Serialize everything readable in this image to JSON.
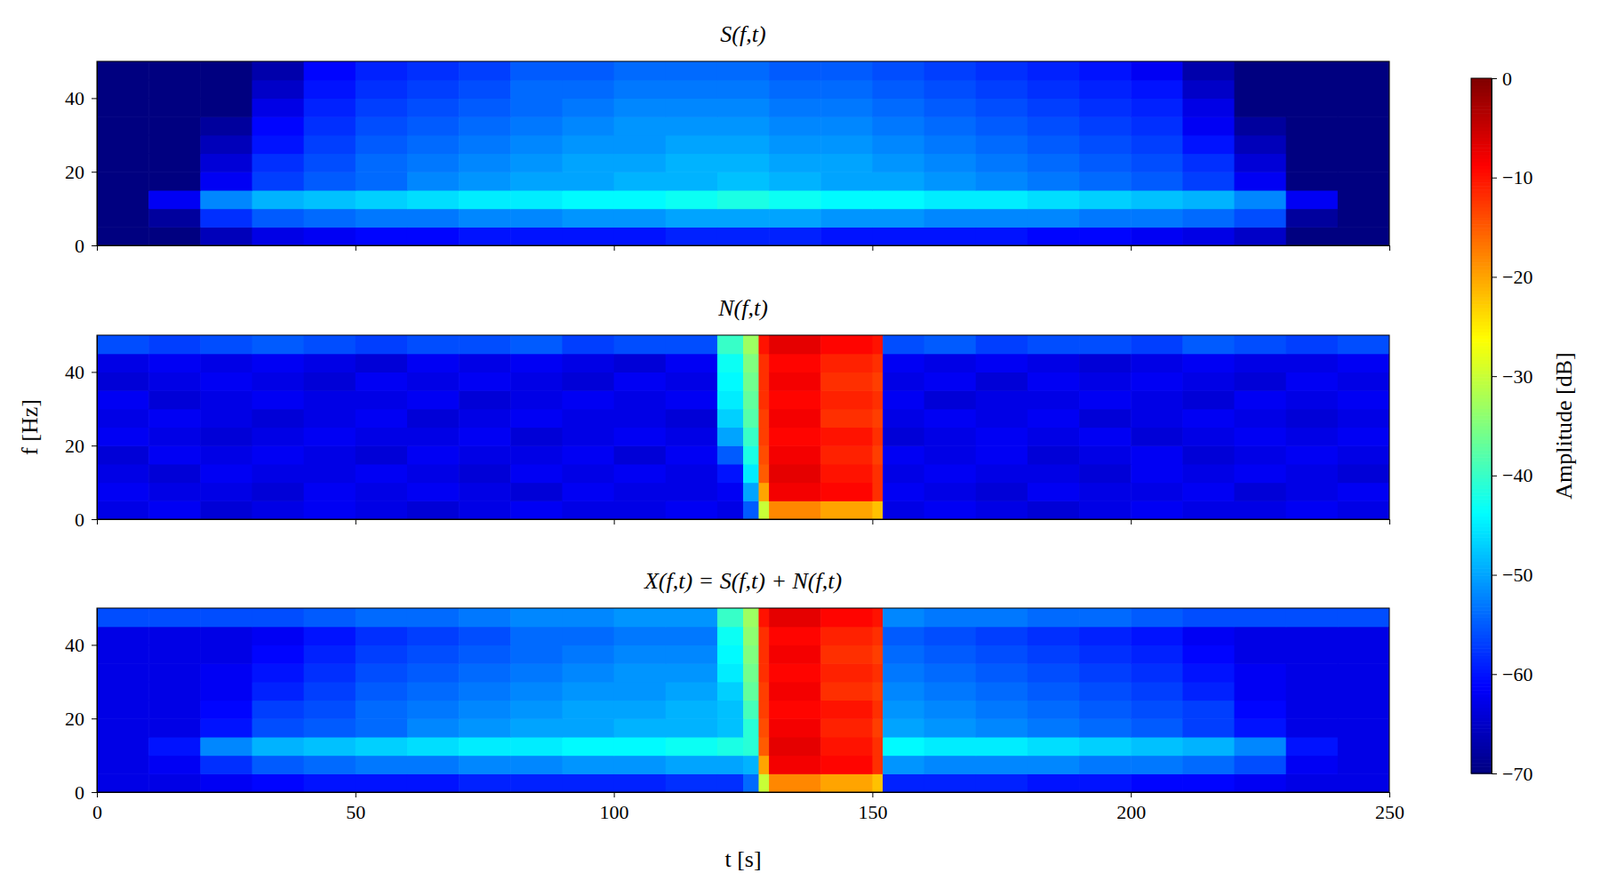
{
  "chart_data": [
    {
      "type": "heatmap",
      "title": "S(f,t)",
      "x": [
        0,
        10,
        20,
        30,
        40,
        50,
        60,
        70,
        80,
        90,
        100,
        110,
        120,
        130,
        140,
        150,
        160,
        170,
        180,
        190,
        200,
        210,
        220,
        230,
        240,
        250
      ],
      "y": [
        0,
        5,
        10,
        15,
        20,
        25,
        30,
        35,
        40,
        45,
        50
      ],
      "values": [
        [
          -70,
          -70,
          -66,
          -63,
          -62,
          -61,
          -61,
          -60,
          -60,
          -60,
          -60,
          -59,
          -59,
          -59,
          -60,
          -60,
          -60,
          -60,
          -61,
          -61,
          -62,
          -63,
          -65,
          -70,
          -70
        ],
        [
          -70,
          -68,
          -58,
          -55,
          -54,
          -53,
          -53,
          -52,
          -52,
          -51,
          -51,
          -50,
          -50,
          -50,
          -51,
          -51,
          -52,
          -52,
          -52,
          -53,
          -53,
          -54,
          -56,
          -68,
          -70
        ],
        [
          -70,
          -62,
          -52,
          -49,
          -48,
          -47,
          -46,
          -45,
          -45,
          -44,
          -44,
          -43,
          -42,
          -43,
          -44,
          -44,
          -45,
          -45,
          -46,
          -47,
          -48,
          -49,
          -52,
          -62,
          -70
        ],
        [
          -70,
          -70,
          -62,
          -57,
          -55,
          -54,
          -52,
          -51,
          -50,
          -50,
          -49,
          -49,
          -48,
          -49,
          -50,
          -50,
          -51,
          -52,
          -53,
          -54,
          -55,
          -57,
          -62,
          -70,
          -70
        ],
        [
          -70,
          -70,
          -64,
          -58,
          -56,
          -54,
          -53,
          -52,
          -51,
          -50,
          -50,
          -49,
          -49,
          -50,
          -50,
          -51,
          -52,
          -53,
          -54,
          -55,
          -56,
          -58,
          -64,
          -70,
          -70
        ],
        [
          -70,
          -70,
          -66,
          -60,
          -57,
          -55,
          -54,
          -53,
          -52,
          -51,
          -51,
          -50,
          -50,
          -51,
          -51,
          -52,
          -53,
          -54,
          -55,
          -56,
          -57,
          -60,
          -66,
          -70,
          -70
        ],
        [
          -70,
          -70,
          -68,
          -61,
          -58,
          -56,
          -55,
          -54,
          -53,
          -52,
          -51,
          -51,
          -51,
          -52,
          -52,
          -53,
          -54,
          -55,
          -56,
          -57,
          -58,
          -62,
          -68,
          -70,
          -70
        ],
        [
          -70,
          -70,
          -70,
          -63,
          -59,
          -57,
          -56,
          -55,
          -54,
          -53,
          -52,
          -52,
          -52,
          -53,
          -53,
          -54,
          -55,
          -56,
          -57,
          -58,
          -59,
          -63,
          -70,
          -70,
          -70
        ],
        [
          -70,
          -70,
          -70,
          -65,
          -60,
          -58,
          -57,
          -56,
          -54,
          -54,
          -53,
          -53,
          -53,
          -54,
          -54,
          -55,
          -56,
          -57,
          -58,
          -59,
          -60,
          -65,
          -70,
          -70,
          -70
        ],
        [
          -70,
          -70,
          -70,
          -67,
          -61,
          -59,
          -58,
          -57,
          -55,
          -55,
          -54,
          -54,
          -54,
          -55,
          -55,
          -56,
          -57,
          -58,
          -59,
          -60,
          -62,
          -67,
          -70,
          -70,
          -70
        ]
      ],
      "xlim": [
        0,
        250
      ],
      "ylim": [
        0,
        50
      ],
      "xticks": [
        0,
        50,
        100,
        150,
        200,
        250
      ],
      "yticks": [
        0,
        20,
        40
      ],
      "tick_labels": "y"
    },
    {
      "type": "heatmap",
      "title": "N(f,t)",
      "ylabel": "f [Hz]",
      "x": [
        0,
        10,
        20,
        30,
        40,
        50,
        60,
        70,
        80,
        90,
        100,
        110,
        120,
        125,
        128,
        130,
        140,
        150,
        152,
        160,
        170,
        180,
        190,
        200,
        210,
        220,
        230,
        240,
        250
      ],
      "y": [
        0,
        5,
        10,
        15,
        20,
        25,
        30,
        35,
        40,
        45,
        50
      ],
      "values": [
        [
          -63,
          -62,
          -64,
          -63,
          -62,
          -63,
          -64,
          -63,
          -62,
          -63,
          -63,
          -62,
          -63,
          -55,
          -30,
          -18,
          -20,
          -22,
          -63,
          -62,
          -63,
          -64,
          -63,
          -62,
          -63,
          -63,
          -62,
          -63
        ],
        [
          -62,
          -63,
          -63,
          -64,
          -62,
          -63,
          -62,
          -63,
          -64,
          -62,
          -63,
          -63,
          -62,
          -50,
          -20,
          -8,
          -9,
          -12,
          -62,
          -63,
          -64,
          -62,
          -63,
          -63,
          -62,
          -64,
          -63,
          -62
        ],
        [
          -63,
          -64,
          -62,
          -63,
          -63,
          -62,
          -63,
          -64,
          -62,
          -63,
          -62,
          -63,
          -60,
          -45,
          -15,
          -7,
          -10,
          -12,
          -63,
          -62,
          -63,
          -63,
          -64,
          -62,
          -63,
          -62,
          -63,
          -64
        ],
        [
          -64,
          -62,
          -63,
          -62,
          -63,
          -64,
          -62,
          -63,
          -63,
          -62,
          -64,
          -62,
          -55,
          -42,
          -14,
          -8,
          -11,
          -13,
          -62,
          -63,
          -62,
          -64,
          -63,
          -62,
          -64,
          -63,
          -62,
          -63
        ],
        [
          -62,
          -63,
          -64,
          -63,
          -62,
          -63,
          -63,
          -62,
          -64,
          -63,
          -62,
          -63,
          -50,
          -40,
          -13,
          -9,
          -10,
          -12,
          -64,
          -63,
          -62,
          -63,
          -62,
          -64,
          -63,
          -62,
          -63,
          -62
        ],
        [
          -63,
          -62,
          -63,
          -64,
          -63,
          -62,
          -64,
          -63,
          -62,
          -63,
          -63,
          -64,
          -47,
          -38,
          -13,
          -8,
          -12,
          -13,
          -63,
          -62,
          -63,
          -62,
          -64,
          -63,
          -62,
          -63,
          -64,
          -63
        ],
        [
          -62,
          -64,
          -63,
          -62,
          -63,
          -63,
          -62,
          -64,
          -63,
          -62,
          -63,
          -62,
          -45,
          -37,
          -12,
          -9,
          -11,
          -12,
          -62,
          -64,
          -63,
          -63,
          -62,
          -63,
          -64,
          -62,
          -63,
          -62
        ],
        [
          -64,
          -63,
          -62,
          -63,
          -64,
          -62,
          -63,
          -62,
          -63,
          -64,
          -62,
          -63,
          -44,
          -36,
          -12,
          -8,
          -12,
          -13,
          -63,
          -62,
          -64,
          -62,
          -63,
          -62,
          -63,
          -64,
          -62,
          -63
        ],
        [
          -63,
          -62,
          -63,
          -62,
          -63,
          -64,
          -62,
          -63,
          -62,
          -63,
          -64,
          -62,
          -43,
          -35,
          -12,
          -9,
          -11,
          -12,
          -62,
          -63,
          -62,
          -63,
          -64,
          -63,
          -62,
          -63,
          -63,
          -62
        ],
        [
          -56,
          -57,
          -56,
          -55,
          -56,
          -57,
          -56,
          -56,
          -55,
          -57,
          -56,
          -56,
          -40,
          -33,
          -10,
          -7,
          -9,
          -10,
          -56,
          -55,
          -57,
          -56,
          -56,
          -57,
          -55,
          -56,
          -57,
          -56
        ]
      ],
      "xlim": [
        0,
        250
      ],
      "ylim": [
        0,
        50
      ],
      "xticks": [
        0,
        50,
        100,
        150,
        200,
        250
      ],
      "yticks": [
        0,
        20,
        40
      ],
      "tick_labels": "y"
    },
    {
      "type": "heatmap",
      "title": "X(f,t) = S(f,t) + N(f,t)",
      "xlabel": "t [s]",
      "x": [
        0,
        10,
        20,
        30,
        40,
        50,
        60,
        70,
        80,
        90,
        100,
        110,
        120,
        125,
        128,
        130,
        140,
        150,
        152,
        160,
        170,
        180,
        190,
        200,
        210,
        220,
        230,
        240,
        250
      ],
      "y": [
        0,
        5,
        10,
        15,
        20,
        25,
        30,
        35,
        40,
        45,
        50
      ],
      "values": [
        [
          -63,
          -63,
          -62,
          -61,
          -60,
          -60,
          -60,
          -59,
          -59,
          -59,
          -59,
          -58,
          -58,
          -54,
          -30,
          -18,
          -20,
          -22,
          -59,
          -59,
          -59,
          -60,
          -60,
          -61,
          -61,
          -62,
          -63,
          -63
        ],
        [
          -63,
          -62,
          -58,
          -55,
          -54,
          -53,
          -53,
          -52,
          -52,
          -51,
          -51,
          -50,
          -50,
          -49,
          -20,
          -8,
          -9,
          -12,
          -51,
          -52,
          -52,
          -52,
          -53,
          -53,
          -54,
          -56,
          -62,
          -63
        ],
        [
          -63,
          -60,
          -52,
          -49,
          -48,
          -47,
          -46,
          -45,
          -45,
          -44,
          -44,
          -43,
          -42,
          -41,
          -15,
          -7,
          -10,
          -12,
          -44,
          -45,
          -45,
          -46,
          -47,
          -48,
          -49,
          -52,
          -60,
          -63
        ],
        [
          -63,
          -63,
          -60,
          -56,
          -55,
          -54,
          -52,
          -51,
          -50,
          -50,
          -49,
          -49,
          -48,
          -41,
          -14,
          -8,
          -11,
          -13,
          -50,
          -51,
          -52,
          -53,
          -54,
          -55,
          -57,
          -60,
          -63,
          -63
        ],
        [
          -63,
          -63,
          -61,
          -57,
          -56,
          -54,
          -53,
          -52,
          -51,
          -50,
          -50,
          -49,
          -48,
          -39,
          -13,
          -9,
          -10,
          -12,
          -51,
          -52,
          -53,
          -54,
          -55,
          -56,
          -57,
          -61,
          -63,
          -63
        ],
        [
          -63,
          -63,
          -62,
          -59,
          -57,
          -55,
          -54,
          -53,
          -52,
          -51,
          -51,
          -50,
          -47,
          -37,
          -13,
          -8,
          -12,
          -13,
          -52,
          -53,
          -54,
          -55,
          -56,
          -57,
          -59,
          -62,
          -63,
          -63
        ],
        [
          -63,
          -63,
          -62,
          -60,
          -58,
          -56,
          -55,
          -54,
          -53,
          -52,
          -51,
          -51,
          -45,
          -36,
          -12,
          -9,
          -11,
          -12,
          -53,
          -54,
          -55,
          -56,
          -57,
          -58,
          -60,
          -62,
          -63,
          -63
        ],
        [
          -63,
          -63,
          -63,
          -61,
          -59,
          -57,
          -56,
          -55,
          -54,
          -53,
          -52,
          -52,
          -44,
          -35,
          -12,
          -8,
          -12,
          -13,
          -54,
          -55,
          -56,
          -57,
          -58,
          -59,
          -61,
          -63,
          -63,
          -63
        ],
        [
          -63,
          -63,
          -63,
          -62,
          -60,
          -58,
          -57,
          -56,
          -54,
          -54,
          -53,
          -53,
          -43,
          -34,
          -12,
          -9,
          -11,
          -12,
          -55,
          -56,
          -57,
          -58,
          -59,
          -60,
          -62,
          -63,
          -63,
          -63
        ],
        [
          -56,
          -56,
          -56,
          -56,
          -55,
          -54,
          -54,
          -53,
          -52,
          -52,
          -51,
          -51,
          -40,
          -33,
          -10,
          -7,
          -9,
          -10,
          -52,
          -53,
          -53,
          -54,
          -54,
          -55,
          -56,
          -56,
          -56,
          -56
        ]
      ],
      "xlim": [
        0,
        250
      ],
      "ylim": [
        0,
        50
      ],
      "xticks": [
        0,
        50,
        100,
        150,
        200,
        250
      ],
      "yticks": [
        0,
        20,
        40
      ],
      "colorbar": {
        "label": "Amplitude [dB]",
        "range": [
          -70,
          0
        ],
        "ticks": [
          {
            "value": -70,
            "label": "−70"
          },
          {
            "value": -60,
            "label": "−60"
          },
          {
            "value": -50,
            "label": "−50"
          },
          {
            "value": -40,
            "label": "−40"
          },
          {
            "value": -30,
            "label": "−30"
          },
          {
            "value": -20,
            "label": "−20"
          },
          {
            "value": -10,
            "label": "−10"
          },
          0
        ]
      }
    }
  ]
}
